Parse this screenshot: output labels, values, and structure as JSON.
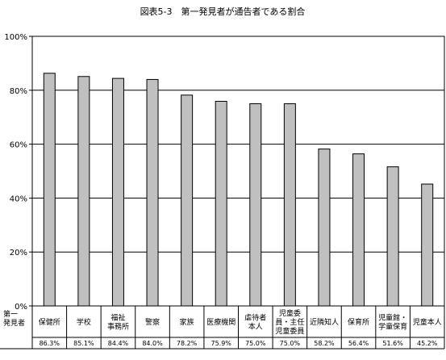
{
  "chart_data": {
    "type": "bar",
    "title": "図表5-3　第一発見者が通告者である割合",
    "xlabel": "",
    "ylabel": "",
    "ylim": [
      0,
      100
    ],
    "yticks": [
      "0%",
      "20%",
      "40%",
      "60%",
      "80%",
      "100%"
    ],
    "grid": true,
    "legend": "none",
    "row_label": [
      "第一",
      "発見者"
    ],
    "categories": [
      [
        "保健所"
      ],
      [
        "学校"
      ],
      [
        "福祉",
        "事務所"
      ],
      [
        "警察"
      ],
      [
        "家族"
      ],
      [
        "医療機関"
      ],
      [
        "虐待者",
        "本人"
      ],
      [
        "児童委",
        "員・主任",
        "児童委員"
      ],
      [
        "近隣知人"
      ],
      [
        "保育所"
      ],
      [
        "児童館・",
        "学童保育"
      ],
      [
        "児童本人"
      ]
    ],
    "values": [
      86.3,
      85.1,
      84.4,
      84.0,
      78.2,
      75.9,
      75.0,
      75.0,
      58.2,
      56.4,
      51.6,
      45.2
    ],
    "value_labels": [
      "86.3%",
      "85.1%",
      "84.4%",
      "84.0%",
      "78.2%",
      "75.9%",
      "75.0%",
      "75.0%",
      "58.2%",
      "56.4%",
      "51.6%",
      "45.2%"
    ],
    "colors": {
      "bar": "#c0c0c0",
      "bar_border": "#000000",
      "grid": "#000000"
    }
  }
}
